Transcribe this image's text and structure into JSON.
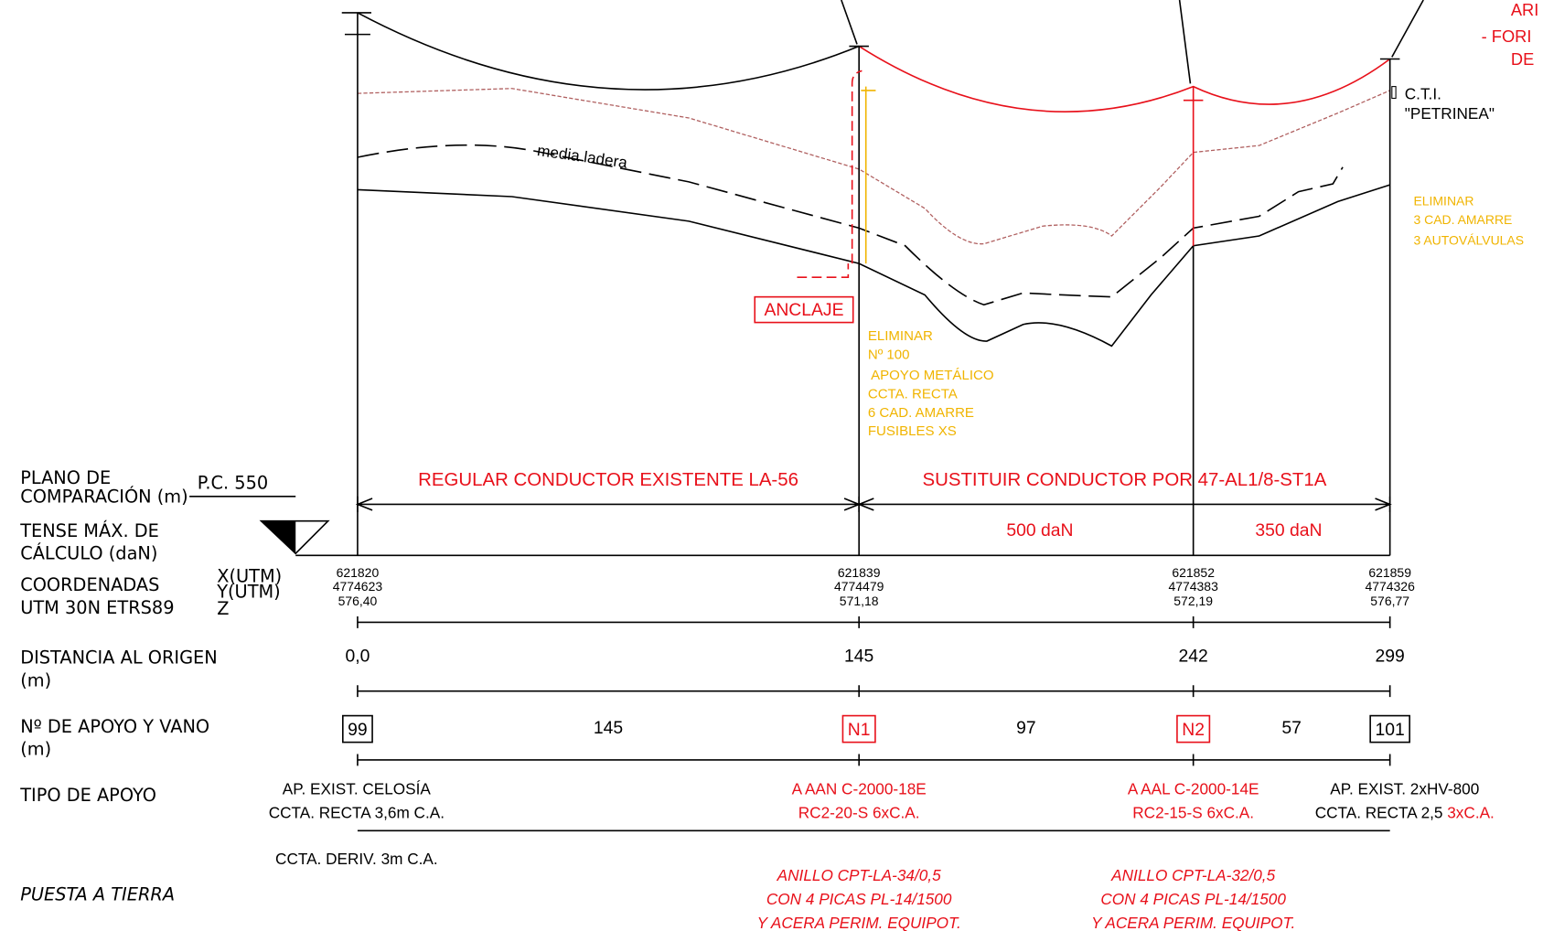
{
  "top_notes": [
    "ARI",
    "- FORI",
    "DE"
  ],
  "cti": [
    "C.T.I.",
    "\"PETRINEA\""
  ],
  "terrain_label": "media ladera",
  "note_right": [
    "ELIMINAR",
    "3 CAD. AMARRE",
    "3 AUTOVÁLVULAS"
  ],
  "anchor_label": "ANCLAJE",
  "note_n100": [
    "ELIMINAR",
    "Nº 100",
    "APOYO METÁLICO",
    "CCTA. RECTA",
    "6 CAD. AMARRE",
    "FUSIBLES XS"
  ],
  "rows": {
    "plano": [
      "PLANO DE",
      "COMPARACIÓN (m)"
    ],
    "pc": "P.C. 550",
    "tense": [
      "TENSE MÁX. DE",
      "CÁLCULO (daN)"
    ],
    "coord": [
      "COORDENADAS",
      "UTM   30N ETRS89"
    ],
    "coord_axes": [
      "X(UTM)",
      "Y(UTM)",
      "Z"
    ],
    "dist": [
      "DISTANCIA AL ORIGEN",
      "(m)"
    ],
    "apoyo": [
      "Nº DE APOYO Y VANO",
      "(m)"
    ],
    "tipo": "TIPO DE APOYO",
    "tierra": "PUESTA A TIERRA"
  },
  "spans": [
    "REGULAR CONDUCTOR EXISTENTE LA-56",
    "SUSTITUIR CONDUCTOR POR 47-AL1/8-ST1A"
  ],
  "tensions": [
    "500 daN",
    "350 daN"
  ],
  "vanos": [
    "145",
    "97",
    "57"
  ],
  "supports": [
    {
      "x": "621820",
      "y": "4774623",
      "z": "576,40",
      "distance": "0,0",
      "id": "99",
      "type": [
        "AP. EXIST. CELOSÍA",
        "CCTA. RECTA 3,6m C.A.",
        "CCTA. DERIV. 3m C.A."
      ]
    },
    {
      "x": "621839",
      "y": "4774479",
      "z": "571,18",
      "distance": "145",
      "id": "N1",
      "type": [
        "A AAN C-2000-18E",
        "RC2-20-S 6xC.A."
      ],
      "earthing": [
        "ANILLO CPT-LA-34/0,5",
        "CON 4 PICAS PL-14/1500",
        "Y ACERA PERIM. EQUIPOT."
      ]
    },
    {
      "x": "621852",
      "y": "4774383",
      "z": "572,19",
      "distance": "242",
      "id": "N2",
      "type": [
        "A AAL C-2000-14E",
        "RC2-15-S 6xC.A."
      ],
      "earthing": [
        "ANILLO CPT-LA-32/0,5",
        "CON 4 PICAS PL-14/1500",
        "Y ACERA PERIM. EQUIPOT."
      ]
    },
    {
      "x": "621859",
      "y": "4774326",
      "z": "576,77",
      "distance": "299",
      "id": "101",
      "type": [
        "AP. EXIST. 2xHV-800",
        "CCTA. RECTA 2,5"
      ],
      "type_extra": "3xC.A."
    }
  ]
}
